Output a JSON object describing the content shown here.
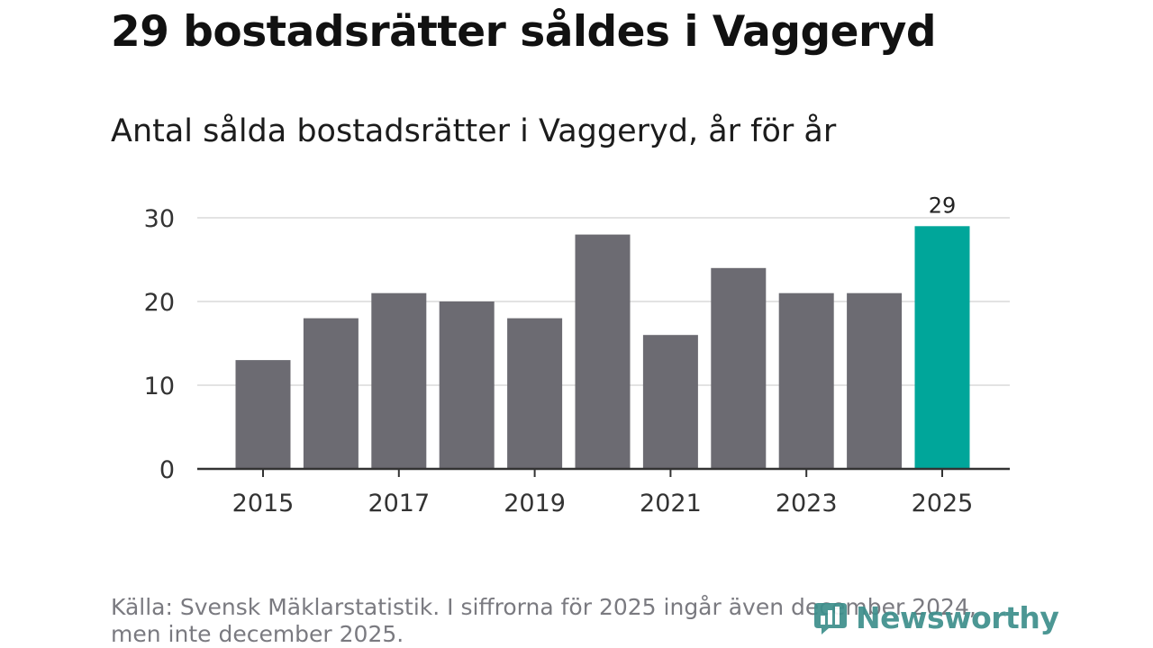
{
  "title": "29 bostadsrätter såldes i Vaggeryd",
  "subtitle": "Antal sålda bostadsrätter i Vaggeryd, år för år",
  "source": "Källa: Svensk Mäklarstatistik. I siffrorna för 2025 ingår även december 2024, men inte december 2025.",
  "logo": {
    "name": "Newsworthy",
    "icon": "bar-chart-logo-icon"
  },
  "colors": {
    "bar": "#6c6b72",
    "highlight": "#00a69a",
    "grid": "#e3e3e3",
    "axis": "#333333"
  },
  "chart_data": {
    "type": "bar",
    "title": "Antal sålda bostadsrätter i Vaggeryd, år för år",
    "xlabel": "",
    "ylabel": "",
    "categories": [
      "2015",
      "2016",
      "2017",
      "2018",
      "2019",
      "2020",
      "2021",
      "2022",
      "2023",
      "2024",
      "2025"
    ],
    "values": [
      13,
      18,
      21,
      20,
      18,
      28,
      16,
      24,
      21,
      21,
      29
    ],
    "highlight_index": 10,
    "data_labels": [
      {
        "category": "2025",
        "text": "29"
      }
    ],
    "yticks": [
      0,
      10,
      20,
      30
    ],
    "xticks": [
      "2015",
      "2017",
      "2019",
      "2021",
      "2023",
      "2025"
    ],
    "ylim": [
      0,
      30
    ],
    "grid": true
  }
}
